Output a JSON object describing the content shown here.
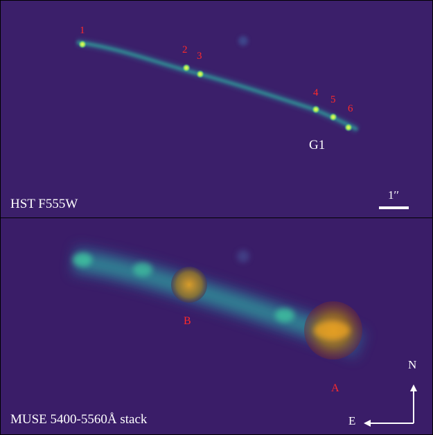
{
  "hst": {
    "caption": "HST F555W",
    "scale_bar_label": "1′′",
    "object_label": "G1",
    "knots": [
      "1",
      "2",
      "3",
      "4",
      "5",
      "6"
    ]
  },
  "muse": {
    "caption": "MUSE 5400-5560Å stack",
    "source_labels": [
      "B",
      "A"
    ],
    "compass": {
      "north": "N",
      "east": "E"
    }
  },
  "colors": {
    "background": "#3b1f6a",
    "arc": "#2fb3a0",
    "knot": "#d8f03a",
    "label": "#ff2a2a",
    "source": "#d07a1a"
  }
}
